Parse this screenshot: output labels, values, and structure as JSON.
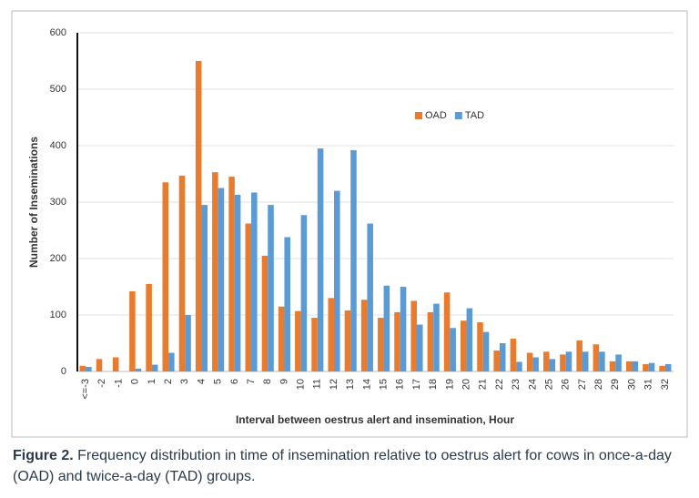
{
  "chart_data": {
    "type": "bar",
    "ylabel": "Number of Inseminations",
    "xlabel": "Interval between oestrus alert and insemination, Hour",
    "categories": [
      "<=-3",
      "-2",
      "-1",
      "0",
      "1",
      "2",
      "3",
      "4",
      "5",
      "6",
      "7",
      "8",
      "9",
      "10",
      "11",
      "12",
      "13",
      "14",
      "15",
      "16",
      "17",
      "18",
      "19",
      "20",
      "21",
      "22",
      "23",
      "24",
      "25",
      "26",
      "27",
      "28",
      "29",
      "30",
      "31",
      "32"
    ],
    "series": [
      {
        "name": "OAD",
        "color": "#e87b2e",
        "values": [
          10,
          22,
          25,
          142,
          155,
          335,
          347,
          550,
          353,
          345,
          262,
          205,
          115,
          107,
          95,
          130,
          108,
          127,
          95,
          105,
          125,
          105,
          140,
          90,
          87,
          37,
          58,
          33,
          35,
          30,
          55,
          48,
          18,
          18,
          13,
          10
        ]
      },
      {
        "name": "TAD",
        "color": "#5b9bd5",
        "values": [
          8,
          0,
          0,
          5,
          12,
          33,
          100,
          295,
          325,
          313,
          317,
          295,
          238,
          277,
          395,
          320,
          392,
          262,
          152,
          150,
          83,
          120,
          77,
          112,
          70,
          50,
          17,
          25,
          22,
          35,
          35,
          35,
          30,
          18,
          15,
          13
        ]
      }
    ],
    "ylim": [
      0,
      600
    ],
    "yticks": [
      0,
      100,
      200,
      300,
      400,
      500,
      600
    ],
    "grid": true,
    "legend": "upper right"
  },
  "caption": {
    "label": "Figure 2.",
    "text": "Frequency distribution in time of insemination relative to oestrus alert for cows in once-a-day (OAD) and twice-a-day (TAD) groups."
  }
}
